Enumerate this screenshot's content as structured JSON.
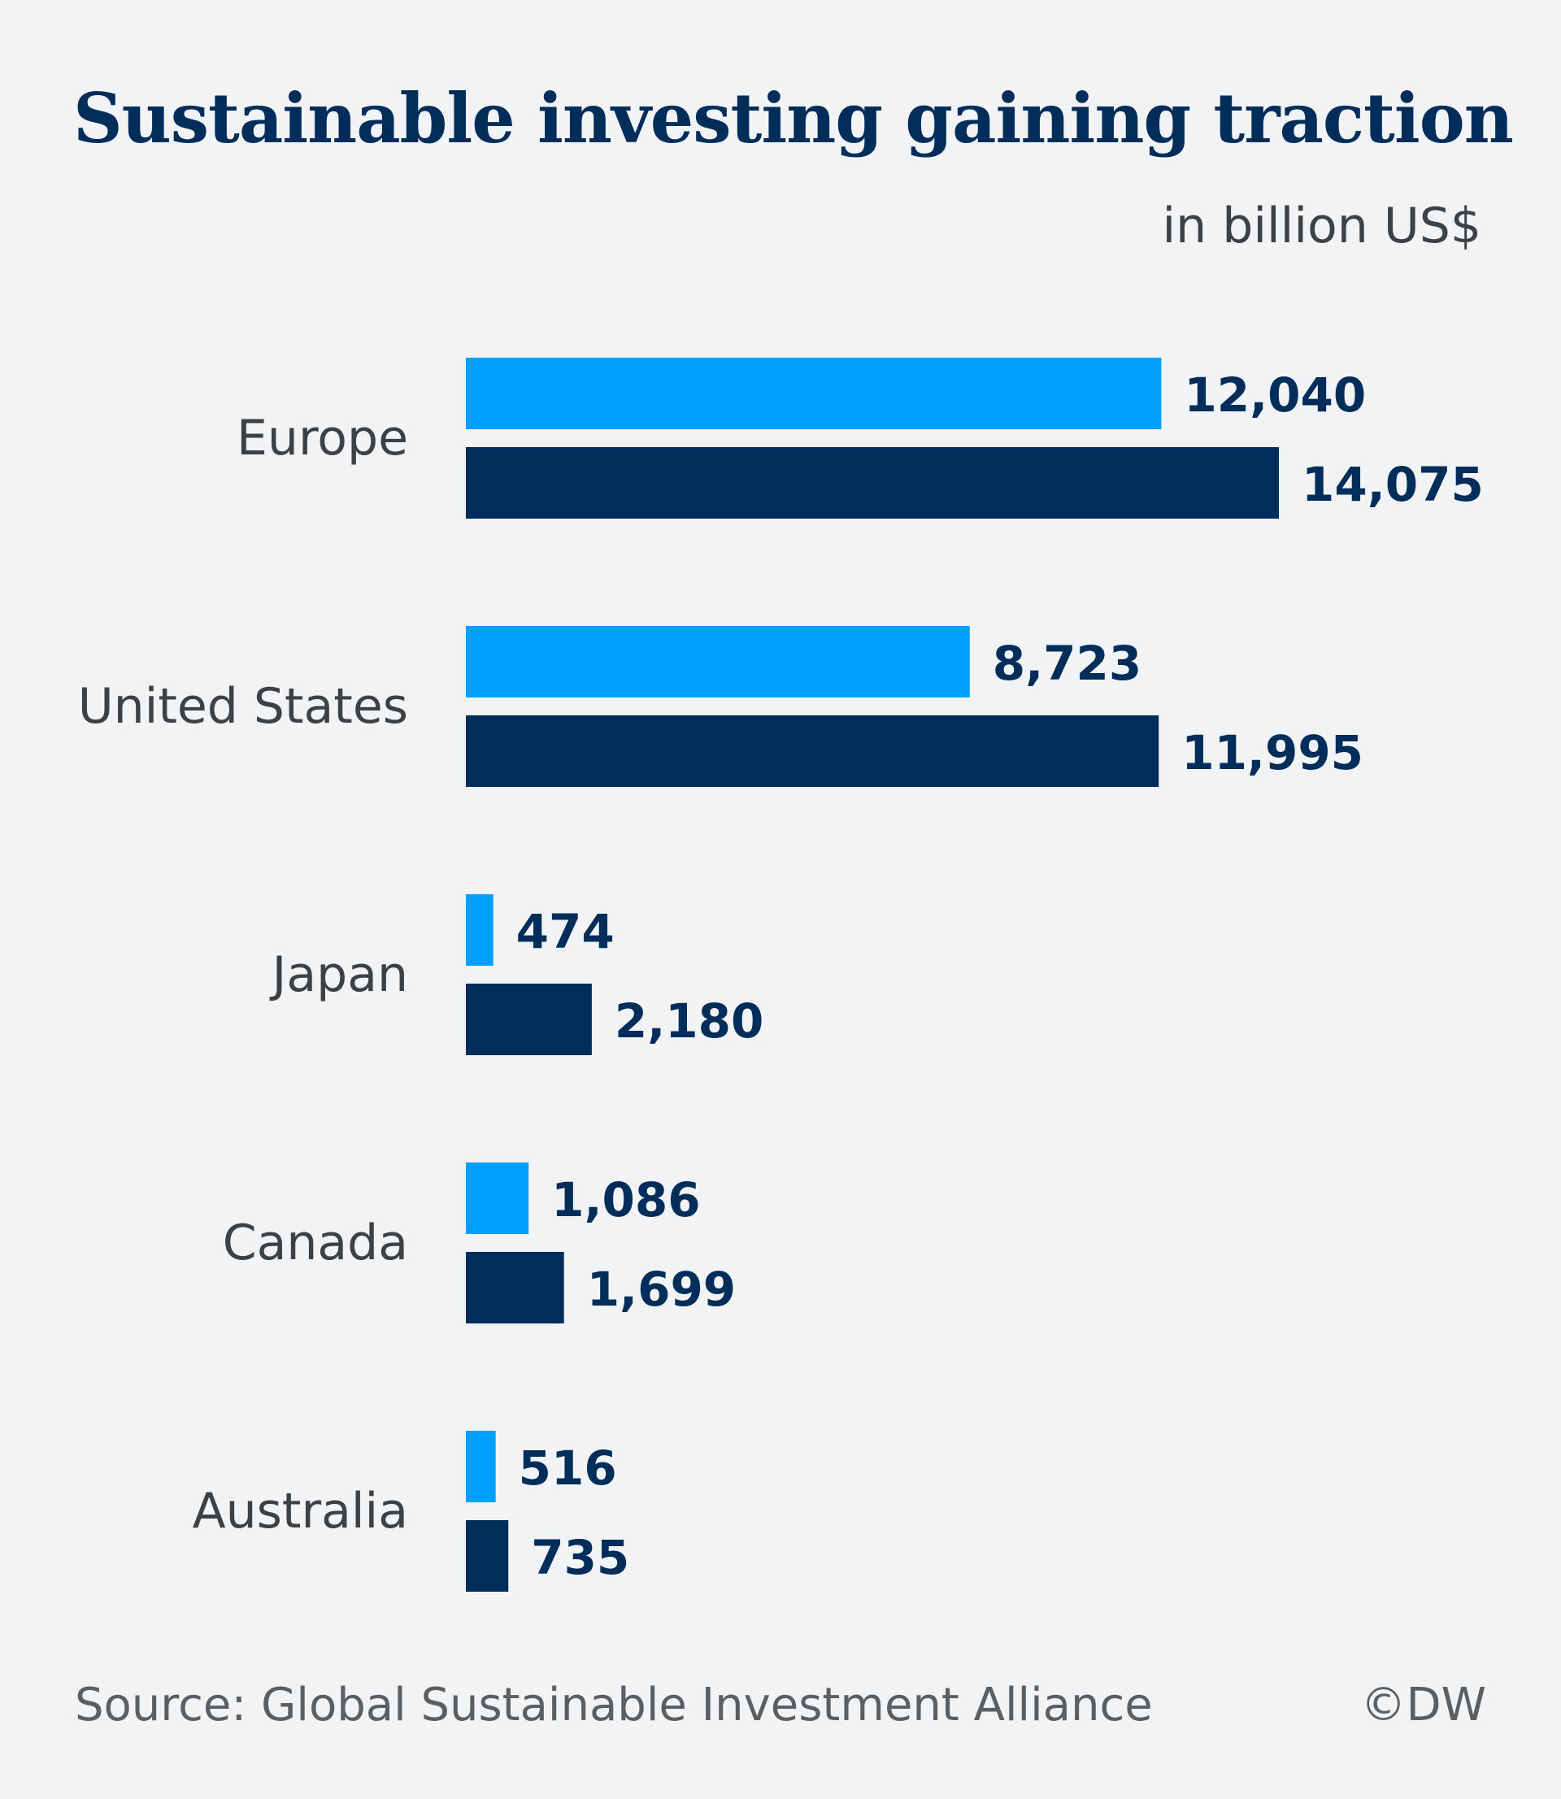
{
  "header": {
    "title": "Sustainable investing gaining traction",
    "unit": "in billion US$"
  },
  "footer": {
    "source": "Source: Global Sustainable Investment Alliance",
    "copyright": "©DW"
  },
  "colors": {
    "series_light": "#00a0ff",
    "series_dark": "#002d5a",
    "background": "#f2f3f5"
  },
  "chart_data": {
    "type": "bar",
    "orientation": "horizontal",
    "title": "Sustainable investing gaining traction",
    "subtitle": "in billion US$",
    "categories": [
      "Europe",
      "United States",
      "Japan",
      "Canada",
      "Australia"
    ],
    "series": [
      {
        "values": [
          12040,
          8723,
          474,
          1086,
          516
        ],
        "labels": [
          "12,040",
          "8,723",
          "474",
          "1,086",
          "516"
        ],
        "color": "#00a0ff"
      },
      {
        "values": [
          14075,
          11995,
          2180,
          1699,
          735
        ],
        "labels": [
          "14,075",
          "11,995",
          "2,180",
          "1,699",
          "735"
        ],
        "color": "#002d5a"
      }
    ],
    "xlim": [
      0,
      14075
    ],
    "grid": false,
    "legend": "none"
  }
}
